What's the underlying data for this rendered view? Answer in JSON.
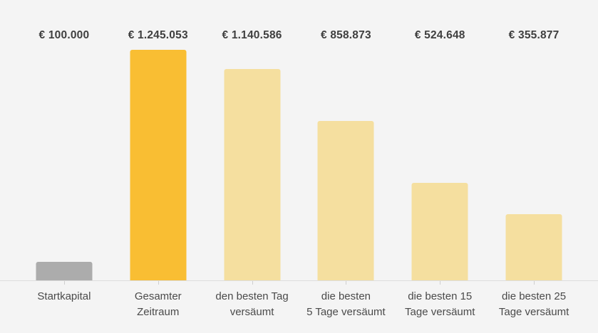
{
  "chart_data": {
    "type": "bar",
    "categories": [
      "Startkapital",
      "Gesamter\nZeitraum",
      "den besten Tag\nversäumt",
      "die besten\n5 Tage versäumt",
      "die besten 15\nTage versäumt",
      "die besten 25\nTage versäumt"
    ],
    "values": [
      100000,
      1245053,
      1140586,
      858873,
      524648,
      355877
    ],
    "value_labels": [
      "€ 100.000",
      "€ 1.245.053",
      "€ 1.140.586",
      "€ 858.873",
      "€ 524.648",
      "€ 355.877"
    ],
    "bar_colors": [
      "#ACACAC",
      "#F9BE33",
      "#F5DF9F",
      "#F5DF9F",
      "#F5DF9F",
      "#F5DF9F"
    ],
    "title": "",
    "xlabel": "",
    "ylabel": "",
    "ylim": [
      0,
      1245053
    ],
    "grid": false,
    "legend": "none"
  },
  "colors": {
    "background": "#F4F4F4",
    "axis_line": "#DDDDDD",
    "tick": "#CFCFCF",
    "value_text": "#3F3F3F",
    "category_text": "#4A4A4A"
  }
}
